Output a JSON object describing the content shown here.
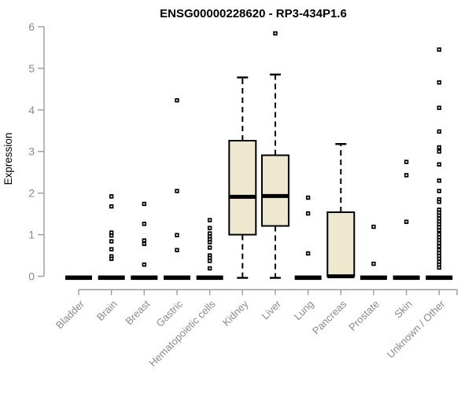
{
  "chart_data": {
    "type": "boxplot",
    "title": "ENSG00000228620 - RP3-434P1.6",
    "ylabel": "Expression",
    "ylim": [
      0,
      6
    ],
    "yticks": [
      0,
      1,
      2,
      3,
      4,
      5,
      6
    ],
    "grid": false,
    "legend": "none",
    "categories": [
      "Bladder",
      "Brain",
      "Breast",
      "Gastric",
      "Hematopoietic cells",
      "Kidney",
      "Liver",
      "Lung",
      "Pancreas",
      "Prostate",
      "Skin",
      "Unknown / Other"
    ],
    "series": [
      {
        "category": "Bladder",
        "low": 0,
        "q1": 0,
        "median": 0,
        "q3": 0,
        "high": 0,
        "outliers": []
      },
      {
        "category": "Brain",
        "low": 0,
        "q1": 0,
        "median": 0,
        "q3": 0,
        "high": 0,
        "outliers": [
          1.92,
          1.68,
          1.05,
          0.98,
          0.84,
          0.65,
          0.48,
          0.42
        ]
      },
      {
        "category": "Breast",
        "low": 0,
        "q1": 0,
        "median": 0,
        "q3": 0,
        "high": 0,
        "outliers": [
          1.74,
          1.26,
          0.86,
          0.78,
          0.28
        ]
      },
      {
        "category": "Gastric",
        "low": 0,
        "q1": 0,
        "median": 0,
        "q3": 0,
        "high": 0,
        "outliers": [
          4.23,
          2.05,
          0.99,
          0.63
        ]
      },
      {
        "category": "Hematopoietic cells",
        "low": 0,
        "q1": 0,
        "median": 0,
        "q3": 0,
        "high": 0,
        "outliers": [
          1.35,
          1.16,
          1.03,
          0.96,
          0.89,
          0.82,
          0.69,
          0.5,
          0.44,
          0.37,
          0.19
        ]
      },
      {
        "category": "Kidney",
        "low": 0,
        "q1": 1.0,
        "median": 1.91,
        "q3": 3.26,
        "high": 4.78,
        "outliers": []
      },
      {
        "category": "Liver",
        "low": 0,
        "q1": 1.21,
        "median": 1.93,
        "q3": 2.91,
        "high": 4.85,
        "outliers": [
          5.84
        ]
      },
      {
        "category": "Lung",
        "low": 0,
        "q1": 0,
        "median": 0,
        "q3": 0,
        "high": 0,
        "outliers": [
          1.89,
          1.51,
          0.55
        ]
      },
      {
        "category": "Pancreas",
        "low": 0,
        "q1": 0,
        "median": 0,
        "q3": 1.54,
        "high": 3.18,
        "outliers": []
      },
      {
        "category": "Prostate",
        "low": 0,
        "q1": 0,
        "median": 0,
        "q3": 0,
        "high": 0,
        "outliers": [
          1.19,
          0.3
        ]
      },
      {
        "category": "Skin",
        "low": 0,
        "q1": 0,
        "median": 0,
        "q3": 0,
        "high": 0,
        "outliers": [
          2.75,
          2.43,
          1.31
        ]
      },
      {
        "category": "Unknown / Other",
        "low": 0,
        "q1": 0,
        "median": 0,
        "q3": 0,
        "high": 0,
        "outliers": [
          5.45,
          4.66,
          4.05,
          3.48,
          3.1,
          3.0,
          2.69,
          2.3,
          2.05,
          1.85,
          1.79,
          1.6,
          1.53,
          1.46,
          1.39,
          1.32,
          1.25,
          1.18,
          1.11,
          1.01,
          0.94,
          0.87,
          0.8,
          0.72,
          0.63,
          0.56,
          0.49,
          0.42,
          0.35,
          0.28,
          0.21
        ]
      }
    ],
    "colors": {
      "box_fill": "#ede8ce",
      "box_stroke": "#000000",
      "median_line": "#000000",
      "outlier_marker": "#000000",
      "axis_line": "#9b9b9b",
      "tick_text": "#8a8a8a",
      "title_text": "#000000"
    }
  }
}
